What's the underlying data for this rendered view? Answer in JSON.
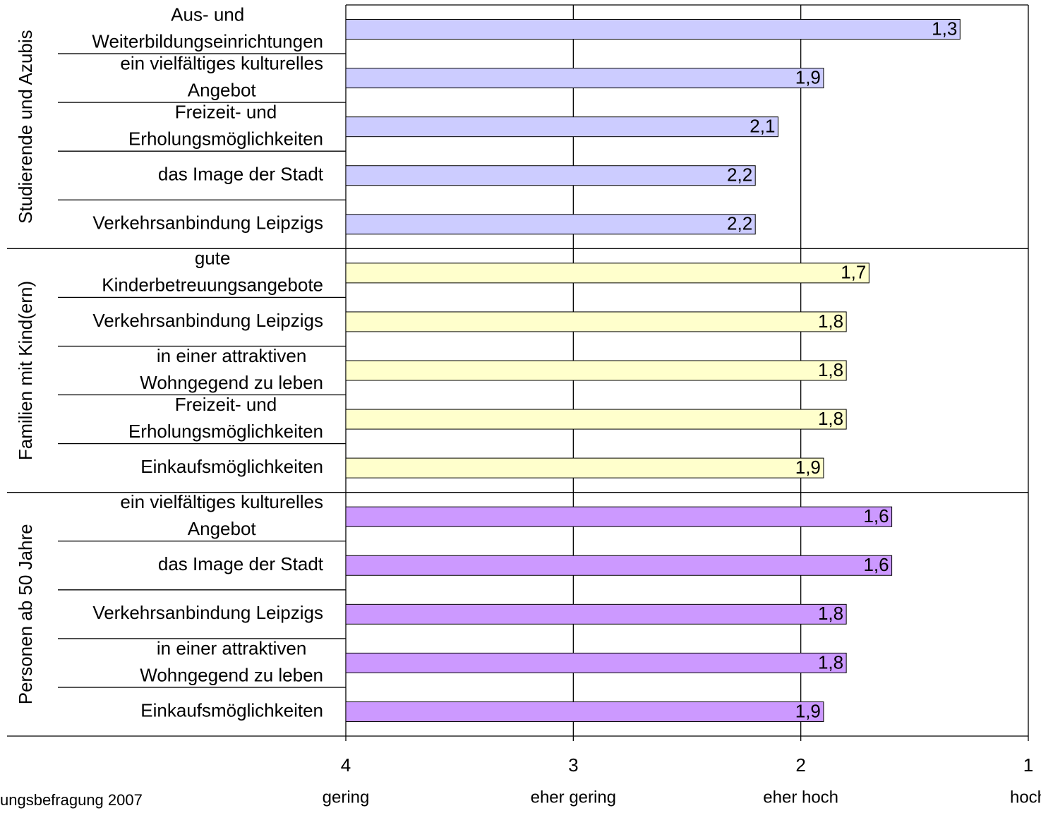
{
  "chart_data": {
    "type": "bar",
    "orientation": "horizontal",
    "xlim": [
      4,
      1
    ],
    "xticks": [
      4,
      3,
      2,
      1
    ],
    "xtick_sublabels": [
      "gering",
      "eher gering",
      "eher hoch",
      "hoch"
    ],
    "grid": true,
    "source": "ungsbefragung 2007",
    "series": [
      {
        "name": "Studierende und Azubis",
        "color": "#ccccff",
        "categories": [
          [
            "Aus- und",
            "Weiterbildungseinrichtungen"
          ],
          [
            "ein vielfältiges kulturelles",
            "Angebot"
          ],
          [
            "Freizeit- und",
            "Erholungsmöglichkeiten"
          ],
          [
            "das Image der Stadt"
          ],
          [
            "Verkehrsanbindung Leipzigs"
          ]
        ],
        "values": [
          1.3,
          1.9,
          2.1,
          2.2,
          2.2
        ],
        "value_labels": [
          "1,3",
          "1,9",
          "2,1",
          "2,2",
          "2,2"
        ]
      },
      {
        "name": "Familien mit Kind(ern)",
        "color": "#ffffcc",
        "categories": [
          [
            "gute",
            "Kinderbetreuungsangebote"
          ],
          [
            "Verkehrsanbindung Leipzigs"
          ],
          [
            "in einer attraktiven",
            "Wohngegend zu leben"
          ],
          [
            "Freizeit- und",
            "Erholungsmöglichkeiten"
          ],
          [
            "Einkaufsmöglichkeiten"
          ]
        ],
        "values": [
          1.7,
          1.8,
          1.8,
          1.8,
          1.9
        ],
        "value_labels": [
          "1,7",
          "1,8",
          "1,8",
          "1,8",
          "1,9"
        ]
      },
      {
        "name": "Personen ab 50 Jahre",
        "color": "#cc99ff",
        "categories": [
          [
            "ein vielfältiges kulturelles",
            "Angebot"
          ],
          [
            "das Image der Stadt"
          ],
          [
            "Verkehrsanbindung Leipzigs"
          ],
          [
            "in einer attraktiven",
            "Wohngegend zu leben"
          ],
          [
            "Einkaufsmöglichkeiten"
          ]
        ],
        "values": [
          1.6,
          1.6,
          1.8,
          1.8,
          1.9
        ],
        "value_labels": [
          "1,6",
          "1,6",
          "1,8",
          "1,8",
          "1,9"
        ]
      }
    ]
  }
}
